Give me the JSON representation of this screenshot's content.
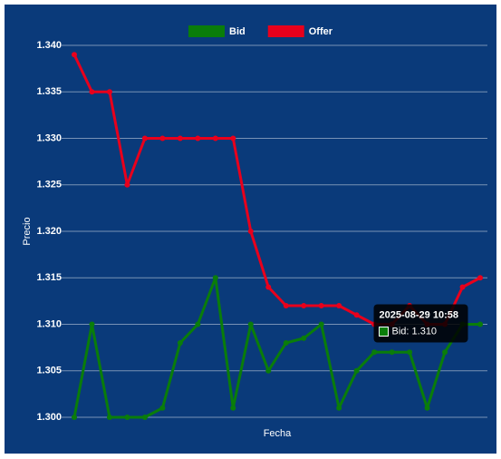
{
  "chart_data": {
    "type": "line",
    "x_label": "Fecha",
    "y_label": "Precio",
    "categories": [
      null,
      null,
      null,
      null,
      null,
      null,
      null,
      null,
      null,
      null,
      null,
      null,
      null,
      null,
      null,
      null,
      null,
      null,
      null,
      null,
      null,
      null,
      "2025-08-29 10:58",
      null
    ],
    "series": [
      {
        "name": "Bid",
        "color": "#0a7d0a",
        "values": [
          1.3,
          1.31,
          1.3,
          1.3,
          1.3,
          1.301,
          1.308,
          1.31,
          1.315,
          1.301,
          1.31,
          1.305,
          1.308,
          1.3085,
          1.31,
          1.301,
          1.305,
          1.307,
          1.307,
          1.307,
          1.301,
          1.307,
          1.31,
          1.31
        ]
      },
      {
        "name": "Offer",
        "color": "#e8001c",
        "values": [
          1.339,
          1.335,
          1.335,
          1.325,
          1.33,
          1.33,
          1.33,
          1.33,
          1.33,
          1.33,
          1.32,
          1.314,
          1.312,
          1.312,
          1.312,
          1.312,
          1.311,
          1.31,
          1.31,
          1.312,
          1.31,
          1.31,
          1.314,
          1.315
        ]
      }
    ],
    "ylim": [
      1.3,
      1.34
    ],
    "yticks": [
      {
        "value": 1.3,
        "label": "1.300"
      },
      1.305,
      {
        "value": 1.31,
        "label": "1.310"
      },
      1.315,
      {
        "value": 1.32,
        "label": "1.320"
      },
      1.325,
      {
        "value": 1.33,
        "label": "1.330"
      },
      1.335,
      {
        "value": 1.34,
        "label": "1.340"
      }
    ],
    "grid": true,
    "legend": "top",
    "tooltip": {
      "index": 22,
      "series": 0,
      "label": "Bid: 1.310"
    }
  }
}
